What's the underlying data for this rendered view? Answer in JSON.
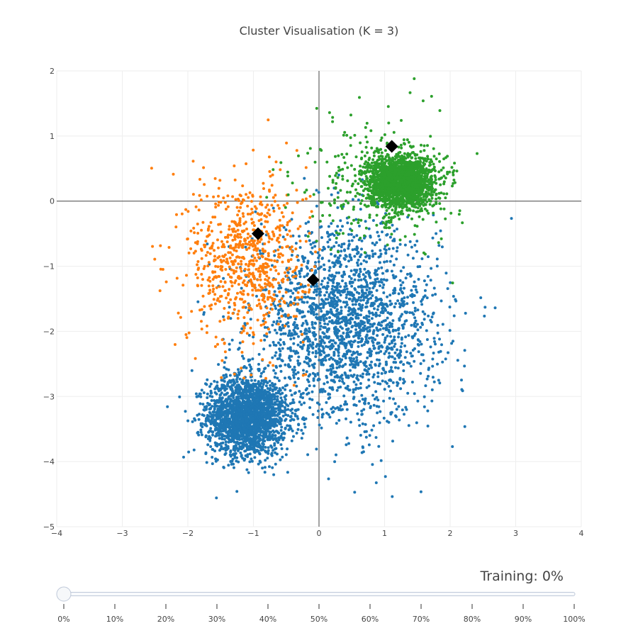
{
  "chart_data": {
    "type": "scatter",
    "title": "Cluster Visualisation (K = 3)",
    "xlabel": "",
    "ylabel": "",
    "xlim": [
      -4,
      4
    ],
    "ylim": [
      -5,
      2
    ],
    "x_ticks": [
      -4,
      -3,
      -2,
      -1,
      0,
      1,
      2,
      3,
      4
    ],
    "y_ticks": [
      -5,
      -4,
      -3,
      -2,
      -1,
      0,
      1,
      2
    ],
    "x_tick_labels": [
      "−4",
      "−3",
      "−2",
      "−1",
      "0",
      "1",
      "2",
      "3",
      "4"
    ],
    "y_tick_labels": [
      "−5",
      "−4",
      "−3",
      "−2",
      "−1",
      "0",
      "1",
      "2"
    ],
    "grid": true,
    "zero_lines": true,
    "legend": "none",
    "series": [
      {
        "color": "#1f77b4",
        "clusters": [
          {
            "center": [
              -1.1,
              -3.3
            ],
            "spread": [
              0.3,
              0.3
            ],
            "count": 2200
          },
          {
            "center": [
              0.4,
              -1.9
            ],
            "spread": [
              0.7,
              0.75
            ],
            "count": 2100
          }
        ]
      },
      {
        "color": "#ff7f0e",
        "clusters": [
          {
            "center": [
              -1.1,
              -0.9
            ],
            "spread": [
              0.45,
              0.65
            ],
            "count": 750
          }
        ]
      },
      {
        "color": "#2ca02c",
        "clusters": [
          {
            "center": [
              1.25,
              0.3
            ],
            "spread": [
              0.25,
              0.2
            ],
            "count": 2000
          },
          {
            "center": [
              0.9,
              0.3
            ],
            "spread": [
              0.6,
              0.5
            ],
            "count": 300
          }
        ]
      }
    ],
    "centroids": {
      "color": "#000000",
      "marker": "diamond",
      "points": [
        {
          "x": -0.93,
          "y": -0.5
        },
        {
          "x": -0.09,
          "y": -1.21
        },
        {
          "x": 1.11,
          "y": 0.84
        }
      ]
    }
  },
  "slider": {
    "value": 0,
    "steps": [
      "0%",
      "10%",
      "20%",
      "30%",
      "40%",
      "50%",
      "60%",
      "70%",
      "80%",
      "90%",
      "100%"
    ]
  },
  "status": {
    "text": "Training: 0%"
  }
}
